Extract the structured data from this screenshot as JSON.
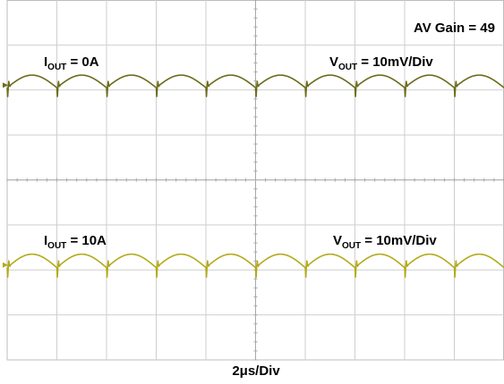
{
  "chart_data": {
    "type": "line",
    "title": "",
    "xlabel": "2μs/Div",
    "ylabel": "",
    "grid": true,
    "grid_divisions": {
      "x": 10,
      "y": 8
    },
    "annotations": {
      "gain": "AV Gain = 49",
      "upper_load": {
        "main": "I",
        "sub": "OUT",
        "value": " = 0A"
      },
      "upper_scale": {
        "main": "V",
        "sub": "OUT",
        "value": " = 10mV/Div"
      },
      "lower_load": {
        "main": "I",
        "sub": "OUT",
        "value": " = 10A"
      },
      "lower_scale": {
        "main": "V",
        "sub": "OUT",
        "value": " = 10mV/Div"
      }
    },
    "series": [
      {
        "color": "#6b6b1a",
        "ripple_cycles": 10,
        "ripple_amplitude_div": 0.28,
        "baseline_div": 1.95
      },
      {
        "color": "#b2aa1a",
        "ripple_cycles": 10,
        "ripple_amplitude_div": 0.3,
        "baseline_div": 5.95
      }
    ],
    "colors": {
      "grid": "#cfcfcf",
      "frame": "#bdbdbd",
      "background": "#ffffff"
    }
  }
}
